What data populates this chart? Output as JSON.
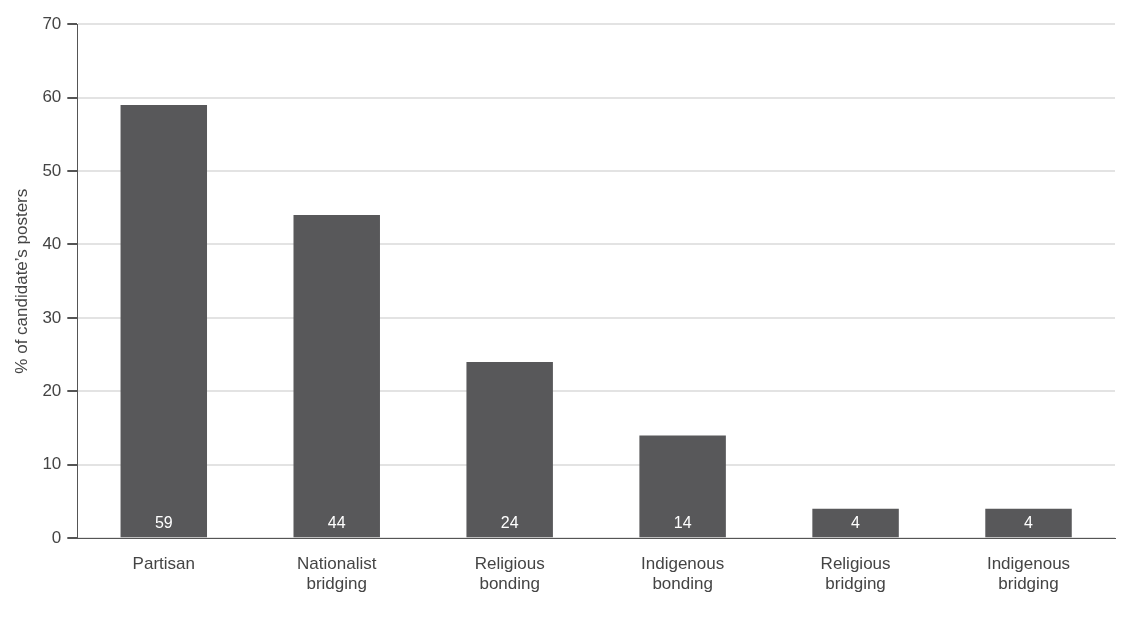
{
  "chart_data": {
    "type": "bar",
    "ylabel": "% of candidate’s posters",
    "categories": [
      "Partisan",
      "Nationalist bridging",
      "Religious bonding",
      "Indigenous bonding",
      "Religious bridging",
      "Indigenous bridging"
    ],
    "values": [
      59,
      44,
      24,
      14,
      4,
      4
    ],
    "color": "#58585a",
    "ylim": [
      0,
      70
    ],
    "yticks": [
      0,
      10,
      20,
      30,
      40,
      50,
      60,
      70
    ],
    "grid": "y",
    "data_labels": true,
    "legend": false
  }
}
